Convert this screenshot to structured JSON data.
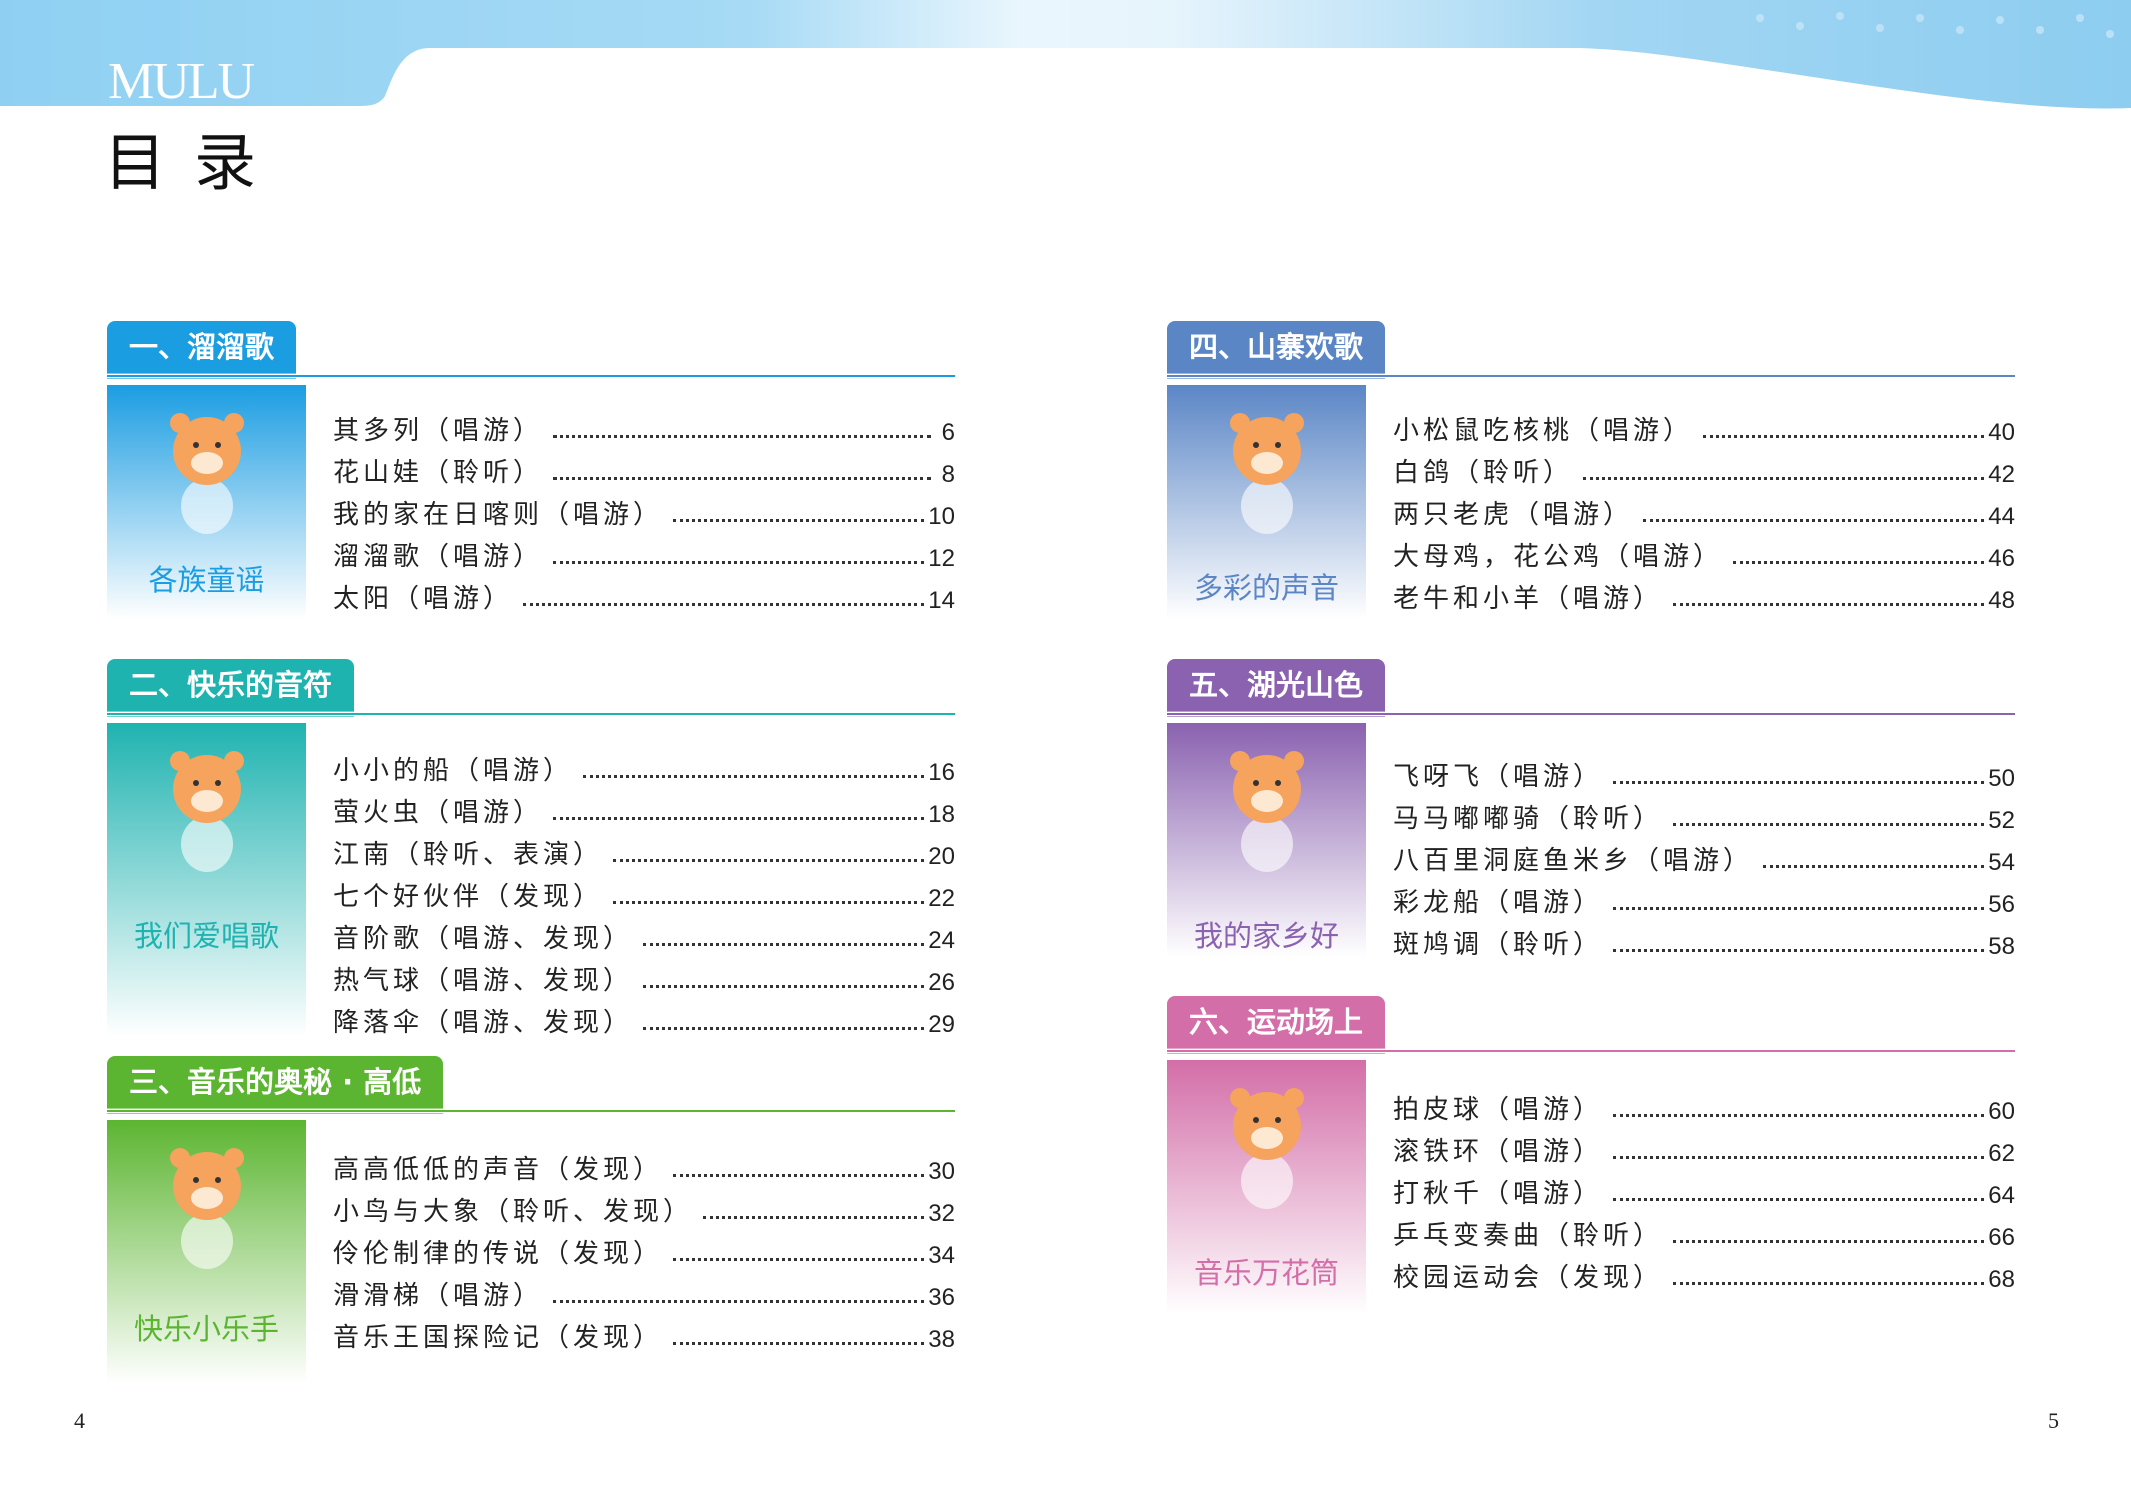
{
  "header": {
    "mulu": "MULU",
    "title": "目录"
  },
  "colors": {
    "blue": "#1b9de2",
    "teal": "#1fb3b0",
    "green": "#5cb531",
    "steel": "#5b86c6",
    "purple": "#8a62b0",
    "pink": "#d36ea8"
  },
  "sections": [
    {
      "heading": "一、溜溜歌",
      "caption": "各族童谣",
      "color": "#1b9de2",
      "entries": [
        {
          "title": "其多列（唱游）",
          "page": "6"
        },
        {
          "title": "花山娃（聆听）",
          "page": "8"
        },
        {
          "title": "我的家在日喀则（唱游）",
          "page": "10"
        },
        {
          "title": "溜溜歌（唱游）",
          "page": "12"
        },
        {
          "title": "太阳（唱游）",
          "page": "14"
        }
      ]
    },
    {
      "heading": "二、快乐的音符",
      "caption": "我们爱唱歌",
      "color": "#1fb3b0",
      "entries": [
        {
          "title": "小小的船（唱游）",
          "page": "16"
        },
        {
          "title": "萤火虫（唱游）",
          "page": "18"
        },
        {
          "title": "江南（聆听、表演）",
          "page": "20"
        },
        {
          "title": "七个好伙伴（发现）",
          "page": "22"
        },
        {
          "title": "音阶歌（唱游、发现）",
          "page": "24"
        },
        {
          "title": "热气球（唱游、发现）",
          "page": "26"
        },
        {
          "title": "降落伞（唱游、发现）",
          "page": "29"
        }
      ]
    },
    {
      "heading": "三、音乐的奥秘 · 高低",
      "caption": "快乐小乐手",
      "color": "#5cb531",
      "entries": [
        {
          "title": "高高低低的声音（发现）",
          "page": "30"
        },
        {
          "title": "小鸟与大象（聆听、发现）",
          "page": "32"
        },
        {
          "title": "伶伦制律的传说（发现）",
          "page": "34"
        },
        {
          "title": "滑滑梯（唱游）",
          "page": "36"
        },
        {
          "title": "音乐王国探险记（发现）",
          "page": "38"
        }
      ]
    },
    {
      "heading": "四、山寨欢歌",
      "caption": "多彩的声音",
      "color": "#5b86c6",
      "entries": [
        {
          "title": "小松鼠吃核桃（唱游）",
          "page": "40"
        },
        {
          "title": "白鸽（聆听）",
          "page": "42"
        },
        {
          "title": "两只老虎（唱游）",
          "page": "44"
        },
        {
          "title": "大母鸡，花公鸡（唱游）",
          "page": "46"
        },
        {
          "title": "老牛和小羊（唱游）",
          "page": "48"
        }
      ]
    },
    {
      "heading": "五、湖光山色",
      "caption": "我的家乡好",
      "color": "#8a62b0",
      "entries": [
        {
          "title": "飞呀飞（唱游）",
          "page": "50"
        },
        {
          "title": "马马嘟嘟骑（聆听）",
          "page": "52"
        },
        {
          "title": "八百里洞庭鱼米乡（唱游）",
          "page": "54"
        },
        {
          "title": "彩龙船（唱游）",
          "page": "56"
        },
        {
          "title": "斑鸠调（聆听）",
          "page": "58"
        }
      ]
    },
    {
      "heading": "六、运动场上",
      "caption": "音乐万花筒",
      "color": "#d36ea8",
      "entries": [
        {
          "title": "拍皮球（唱游）",
          "page": "60"
        },
        {
          "title": "滚铁环（唱游）",
          "page": "62"
        },
        {
          "title": "打秋千（唱游）",
          "page": "64"
        },
        {
          "title": "乒乓变奏曲（聆听）",
          "page": "66"
        },
        {
          "title": "校园运动会（发现）",
          "page": "68"
        }
      ]
    }
  ],
  "page_numbers": {
    "left": "4",
    "right": "5"
  }
}
